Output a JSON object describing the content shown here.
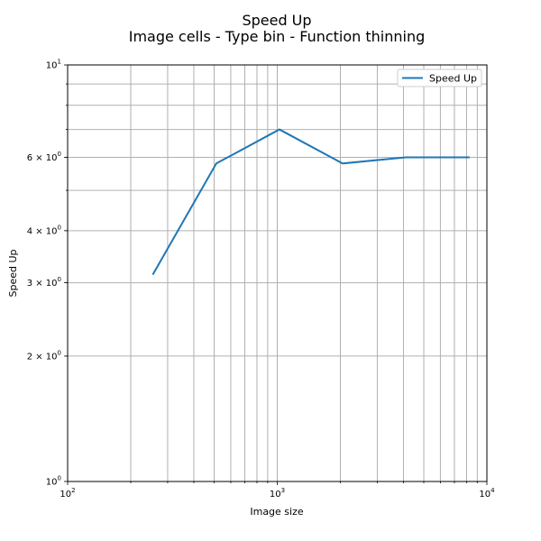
{
  "chart_data": {
    "type": "line",
    "title": "Speed Up",
    "subtitle": "Image cells - Type bin - Function thinning",
    "xlabel": "Image size",
    "ylabel": "Speed Up",
    "xscale": "log",
    "yscale": "log",
    "xlim": [
      100,
      10000
    ],
    "ylim": [
      1,
      10
    ],
    "grid": "on (major and minor)",
    "legend_position": "top-right",
    "x_tick_labels": [
      "10^2",
      "10^3",
      "10^4"
    ],
    "y_tick_labels": [
      {
        "value": 1,
        "label": "10^0"
      },
      {
        "value": 2,
        "label": "2 × 10^0"
      },
      {
        "value": 3,
        "label": "3 × 10^0"
      },
      {
        "value": 4,
        "label": "4 × 10^0"
      },
      {
        "value": 6,
        "label": "6 × 10^0"
      },
      {
        "value": 10,
        "label": "10^1"
      }
    ],
    "series": [
      {
        "name": "Speed Up",
        "color": "#1f77b4",
        "x": [
          256,
          512,
          1024,
          2048,
          4096,
          8192
        ],
        "y": [
          3.15,
          5.8,
          7.0,
          5.8,
          6.0,
          6.0
        ]
      }
    ]
  }
}
